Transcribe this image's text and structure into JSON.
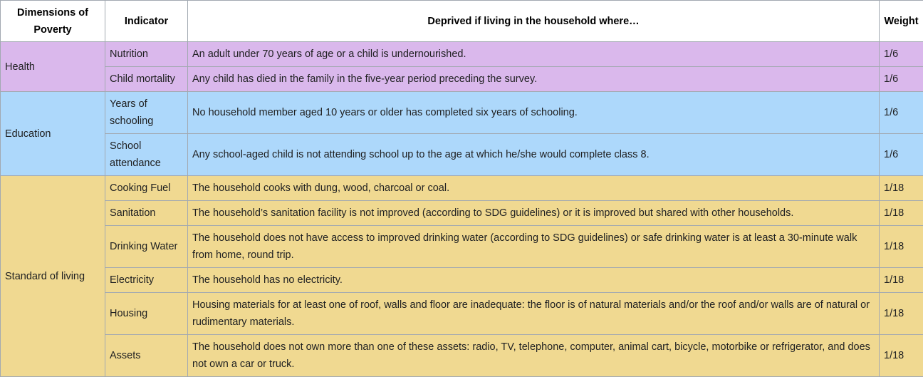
{
  "headers": {
    "dimension": "Dimensions of Poverty",
    "indicator": "Indicator",
    "deprived": "Deprived if living in the household where…",
    "weight": "Weight"
  },
  "colors": {
    "health": "#dab8ec",
    "education": "#add8fb",
    "standard_of_living": "#f0d991",
    "border": "#a2a9b1"
  },
  "dimensions": {
    "health": "Health",
    "education": "Education",
    "living": "Standard of living"
  },
  "rows": [
    {
      "indicator": "Nutrition",
      "deprived": "An adult under 70 years of age or a child is undernourished.",
      "weight": "1/6"
    },
    {
      "indicator": "Child mortality",
      "deprived": "Any child has died in the family in the five-year period preceding the survey.",
      "weight": "1/6"
    },
    {
      "indicator": "Years of schooling",
      "deprived": "No household member aged 10 years or older has completed six years of schooling.",
      "weight": "1/6"
    },
    {
      "indicator": "School attendance",
      "deprived": "Any school-aged child is not attending school up to the age at which he/she would complete class 8.",
      "weight": "1/6"
    },
    {
      "indicator": "Cooking Fuel",
      "deprived": "The household cooks with dung, wood, charcoal or coal.",
      "weight": "1/18"
    },
    {
      "indicator": "Sanitation",
      "deprived": "The household’s sanitation facility is not improved (according to SDG guidelines) or it is improved but shared with other households.",
      "weight": "1/18"
    },
    {
      "indicator": "Drinking Water",
      "deprived": "The household does not have access to improved drinking water (according to SDG guidelines) or safe drinking water is at least a 30-minute walk from home, round trip.",
      "weight": "1/18"
    },
    {
      "indicator": "Electricity",
      "deprived": "The household has no electricity.",
      "weight": "1/18"
    },
    {
      "indicator": "Housing",
      "deprived": "Housing materials for at least one of roof, walls and floor are inadequate: the floor is of natural materials and/or the roof and/or walls are of natural or rudimentary materials.",
      "weight": "1/18"
    },
    {
      "indicator": "Assets",
      "deprived": "The household does not own more than one of these assets: radio, TV, telephone, computer, animal cart, bicycle, motorbike or refrigerator, and does not own a car or truck.",
      "weight": "1/18"
    }
  ]
}
